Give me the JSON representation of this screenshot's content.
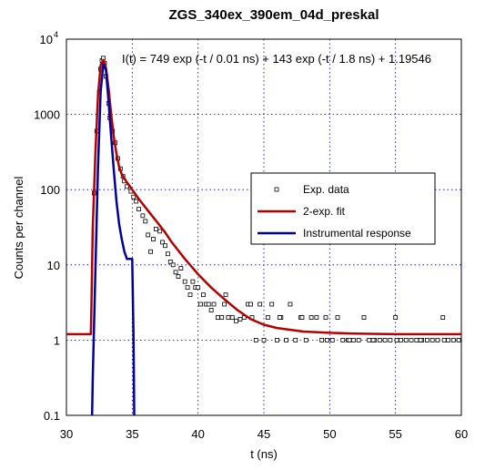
{
  "chart_data": {
    "type": "scatter",
    "title": "ZGS_340ex_390em_04d_preskal",
    "xlabel": "t (ns)",
    "ylabel": "Counts per channel",
    "xlim": [
      30,
      60
    ],
    "ylim": [
      0.1,
      10000
    ],
    "y_scale": "log",
    "grid": true,
    "x_ticks": [
      "30",
      "35",
      "40",
      "45",
      "50",
      "55",
      "60"
    ],
    "y_ticks": [
      {
        "value": 0.1,
        "label": "0.1"
      },
      {
        "value": 1,
        "label": "1"
      },
      {
        "value": 10,
        "label": "10"
      },
      {
        "value": 100,
        "label": "100"
      },
      {
        "value": 1000,
        "label": "1000"
      },
      {
        "value": 10000,
        "base": "10",
        "exp": "4"
      }
    ],
    "annotation": "I(t) = 749 exp (-t / 0.01 ns) + 143 exp (-t / 1.8 ns) + 1.19546",
    "legend_position": "center-right",
    "series": [
      {
        "name": "Exp. data",
        "kind": "markers",
        "marker": "open-square",
        "color": "#000000",
        "x": [
          32.1,
          32.3,
          32.5,
          32.6,
          32.7,
          32.8,
          32.9,
          33.0,
          33.2,
          33.3,
          33.5,
          33.7,
          33.9,
          34.1,
          34.3,
          34.4,
          34.6,
          34.9,
          35.1,
          35.3,
          35.5,
          35.8,
          36.0,
          36.2,
          36.4,
          36.6,
          36.8,
          37.1,
          37.3,
          37.5,
          37.7,
          37.9,
          38.1,
          38.3,
          38.5,
          38.7,
          39.0,
          39.2,
          39.4,
          39.6,
          39.8,
          40.0,
          40.2,
          40.4,
          40.6,
          40.8,
          41.0,
          41.2,
          41.5,
          41.8,
          42.0,
          42.3,
          42.6,
          42.9,
          43.2,
          43.5,
          43.8,
          44.1,
          44.4,
          44.7,
          45.0,
          45.3,
          45.6,
          46.0,
          46.3,
          46.7,
          47.0,
          47.4,
          47.8,
          48.2,
          48.6,
          49.0,
          49.4,
          49.8,
          50.2,
          50.6,
          51.0,
          51.4,
          51.8,
          52.2,
          52.6,
          53.0,
          53.4,
          53.8,
          54.2,
          54.6,
          55.0,
          55.4,
          55.8,
          56.2,
          56.6,
          57.0,
          57.4,
          57.8,
          58.2,
          58.6,
          59.0,
          59.4,
          59.8,
          42.1,
          44.0,
          46.2,
          47.9,
          49.7,
          51.5,
          53.3,
          55.1,
          56.9,
          58.7
        ],
        "y": [
          90,
          600,
          2000,
          4000,
          5200,
          5600,
          4800,
          3200,
          1400,
          900,
          600,
          420,
          260,
          190,
          150,
          130,
          110,
          95,
          80,
          70,
          55,
          45,
          38,
          25,
          15,
          22,
          30,
          28,
          20,
          18,
          14,
          11,
          10,
          8,
          7,
          9,
          6,
          5,
          4,
          6,
          5,
          5,
          3,
          4,
          3,
          3,
          2.5,
          3,
          2,
          2,
          3,
          2,
          2,
          1.8,
          1.9,
          2,
          3,
          2,
          1,
          3,
          1,
          2,
          3,
          1,
          2,
          1,
          3,
          1,
          2,
          1,
          2,
          2,
          1,
          1,
          1,
          2,
          1,
          1,
          1,
          1,
          2,
          1,
          1,
          1,
          1,
          1,
          2,
          1,
          1,
          1,
          1,
          1,
          1,
          1,
          1,
          2,
          1,
          1,
          1,
          4,
          3,
          2,
          2,
          2,
          1,
          1,
          1,
          1,
          1
        ],
        "label_ref": "legend.items.0"
      },
      {
        "name": "2-exp. fit",
        "kind": "line",
        "color": "#b40000",
        "x": [
          30.0,
          31.85,
          31.9,
          32.0,
          32.2,
          32.4,
          32.6,
          32.8,
          33.0,
          33.2,
          33.4,
          33.6,
          33.8,
          34.0,
          34.2,
          34.4,
          34.6,
          34.8,
          35.0,
          35.5,
          36.0,
          36.5,
          37.0,
          37.5,
          38.0,
          38.5,
          39.0,
          39.5,
          40.0,
          41.0,
          42.0,
          43.0,
          44.0,
          45.0,
          46.0,
          48.0,
          50.0,
          52.0,
          55.0,
          60.0
        ],
        "y": [
          1.2,
          1.2,
          3,
          30,
          300,
          1800,
          4500,
          5300,
          4200,
          2200,
          1000,
          500,
          300,
          200,
          160,
          140,
          125,
          112,
          100,
          75,
          58,
          45,
          35,
          27,
          20,
          15.5,
          12,
          9.5,
          7.5,
          5,
          3.5,
          2.5,
          1.9,
          1.6,
          1.45,
          1.3,
          1.25,
          1.22,
          1.2,
          1.2
        ],
        "label_ref": "legend.items.1"
      },
      {
        "name": "Instrumental response",
        "kind": "line",
        "color": "#00009c",
        "x": [
          31.95,
          32.0,
          32.2,
          32.4,
          32.6,
          32.8,
          33.0,
          33.2,
          33.4,
          33.6,
          33.8,
          34.0,
          34.2,
          34.4,
          34.6,
          34.75,
          34.8,
          35.0,
          35.1,
          35.15
        ],
        "y": [
          0.1,
          0.3,
          8,
          200,
          2000,
          4600,
          3900,
          1500,
          500,
          180,
          70,
          35,
          22,
          15,
          12,
          12,
          12,
          12,
          1,
          0.1
        ],
        "label_ref": "legend.items.2"
      }
    ]
  },
  "legend": {
    "items": [
      {
        "label": "Exp. data",
        "style": "marker",
        "color": "#000000"
      },
      {
        "label": "2-exp. fit",
        "style": "line",
        "color": "#b40000"
      },
      {
        "label": "Instrumental response",
        "style": "line",
        "color": "#00009c"
      }
    ]
  }
}
